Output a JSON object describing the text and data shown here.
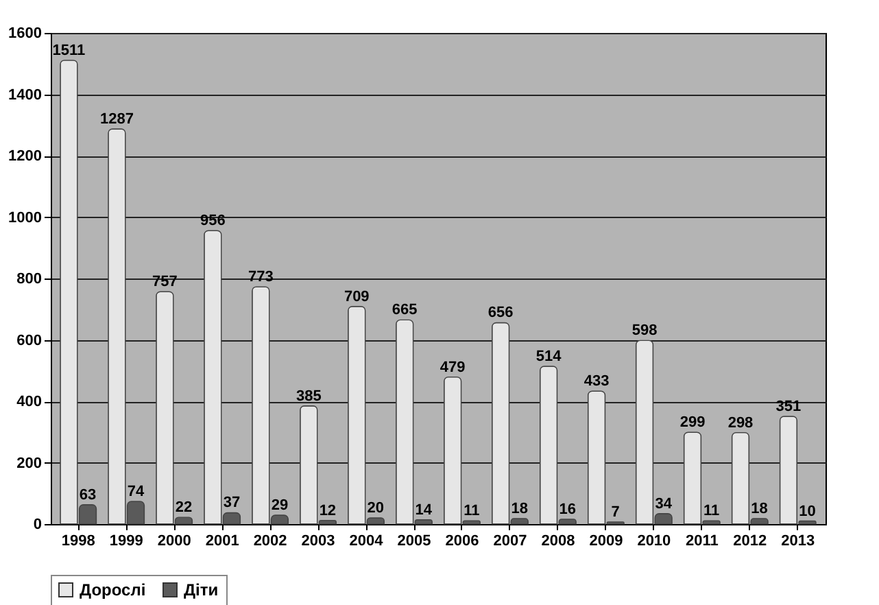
{
  "chart_data": {
    "type": "bar",
    "categories": [
      "1998",
      "1999",
      "2000",
      "2001",
      "2002",
      "2003",
      "2004",
      "2005",
      "2006",
      "2007",
      "2008",
      "2009",
      "2010",
      "2011",
      "2012",
      "2013"
    ],
    "series": [
      {
        "name": "Дорослі",
        "color": "#e6e6e6",
        "values": [
          1511,
          1287,
          757,
          956,
          773,
          385,
          709,
          665,
          479,
          656,
          514,
          433,
          598,
          299,
          298,
          351
        ]
      },
      {
        "name": "Діти",
        "color": "#5a5a5a",
        "values": [
          63,
          74,
          22,
          37,
          29,
          12,
          20,
          14,
          11,
          18,
          16,
          7,
          34,
          11,
          18,
          10
        ]
      }
    ],
    "ylim": [
      0,
      1600
    ],
    "yticks": [
      0,
      200,
      400,
      600,
      800,
      1000,
      1200,
      1400,
      1600
    ],
    "grid": "y",
    "legend": "bottom",
    "data_labels": true
  }
}
